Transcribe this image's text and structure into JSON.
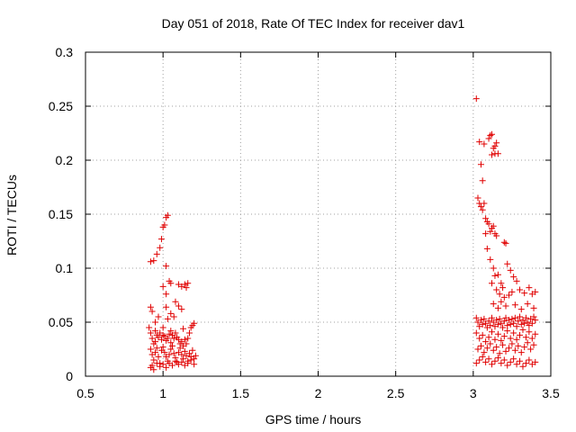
{
  "chart_data": {
    "type": "scatter",
    "title": "Day 051 of 2018, Rate Of TEC Index for receiver dav1",
    "xlabel": "GPS time / hours",
    "ylabel": "ROTI / TECUs",
    "xlim": [
      0.5,
      3.5
    ],
    "ylim": [
      0,
      0.3
    ],
    "xticks": [
      0.5,
      1,
      1.5,
      2,
      2.5,
      3,
      3.5
    ],
    "xtick_labels": [
      "0.5",
      "1",
      "1.5",
      "2",
      "2.5",
      "3",
      "3.5"
    ],
    "yticks": [
      0,
      0.05,
      0.1,
      0.15,
      0.2,
      0.25,
      0.3
    ],
    "ytick_labels": [
      "0",
      "0.05",
      "0.1",
      "0.15",
      "0.2",
      "0.25",
      "0.3"
    ],
    "grid": true,
    "marker": "+",
    "color": "#e00000",
    "series": [
      {
        "name": "ROTI",
        "points": [
          [
            0.92,
            0.106
          ],
          [
            0.94,
            0.107
          ],
          [
            0.96,
            0.113
          ],
          [
            0.98,
            0.119
          ],
          [
            0.99,
            0.127
          ],
          [
            1.0,
            0.138
          ],
          [
            1.01,
            0.14
          ],
          [
            1.03,
            0.149
          ],
          [
            1.02,
            0.147
          ],
          [
            1.02,
            0.102
          ],
          [
            1.0,
            0.083
          ],
          [
            1.02,
            0.076
          ],
          [
            1.04,
            0.088
          ],
          [
            1.05,
            0.086
          ],
          [
            1.1,
            0.085
          ],
          [
            1.12,
            0.083
          ],
          [
            1.14,
            0.085
          ],
          [
            1.15,
            0.082
          ],
          [
            1.16,
            0.086
          ],
          [
            1.08,
            0.069
          ],
          [
            0.92,
            0.064
          ],
          [
            0.93,
            0.06
          ],
          [
            0.95,
            0.05
          ],
          [
            0.97,
            0.055
          ],
          [
            1.02,
            0.064
          ],
          [
            1.05,
            0.058
          ],
          [
            1.07,
            0.055
          ],
          [
            1.03,
            0.053
          ],
          [
            1.1,
            0.065
          ],
          [
            1.12,
            0.062
          ],
          [
            0.91,
            0.045
          ],
          [
            0.92,
            0.04
          ],
          [
            0.93,
            0.035
          ],
          [
            0.94,
            0.03
          ],
          [
            0.95,
            0.042
          ],
          [
            0.96,
            0.038
          ],
          [
            0.97,
            0.036
          ],
          [
            0.98,
            0.04
          ],
          [
            0.99,
            0.034
          ],
          [
            1.0,
            0.038
          ],
          [
            1.01,
            0.037
          ],
          [
            1.02,
            0.033
          ],
          [
            1.03,
            0.035
          ],
          [
            1.04,
            0.039
          ],
          [
            1.05,
            0.042
          ],
          [
            1.06,
            0.038
          ],
          [
            1.07,
            0.035
          ],
          [
            1.08,
            0.04
          ],
          [
            1.09,
            0.036
          ],
          [
            1.1,
            0.034
          ],
          [
            1.11,
            0.03
          ],
          [
            1.12,
            0.032
          ],
          [
            1.13,
            0.028
          ],
          [
            1.14,
            0.034
          ],
          [
            1.15,
            0.03
          ],
          [
            1.16,
            0.035
          ],
          [
            1.17,
            0.04
          ],
          [
            1.18,
            0.045
          ],
          [
            1.19,
            0.047
          ],
          [
            1.2,
            0.049
          ],
          [
            0.92,
            0.025
          ],
          [
            0.93,
            0.02
          ],
          [
            0.94,
            0.015
          ],
          [
            0.95,
            0.022
          ],
          [
            0.96,
            0.026
          ],
          [
            0.97,
            0.018
          ],
          [
            0.98,
            0.012
          ],
          [
            0.99,
            0.024
          ],
          [
            1.0,
            0.027
          ],
          [
            1.01,
            0.022
          ],
          [
            1.02,
            0.018
          ],
          [
            1.03,
            0.014
          ],
          [
            1.04,
            0.02
          ],
          [
            1.05,
            0.025
          ],
          [
            1.06,
            0.028
          ],
          [
            1.07,
            0.021
          ],
          [
            1.08,
            0.017
          ],
          [
            1.09,
            0.013
          ],
          [
            1.1,
            0.022
          ],
          [
            1.11,
            0.026
          ],
          [
            1.12,
            0.02
          ],
          [
            1.13,
            0.016
          ],
          [
            1.14,
            0.023
          ],
          [
            1.15,
            0.019
          ],
          [
            1.16,
            0.014
          ],
          [
            1.17,
            0.021
          ],
          [
            1.18,
            0.018
          ],
          [
            1.19,
            0.024
          ],
          [
            1.2,
            0.016
          ],
          [
            1.21,
            0.019
          ],
          [
            0.92,
            0.008
          ],
          [
            0.93,
            0.01
          ],
          [
            0.94,
            0.006
          ],
          [
            0.96,
            0.012
          ],
          [
            0.98,
            0.009
          ],
          [
            1.0,
            0.011
          ],
          [
            1.02,
            0.008
          ],
          [
            1.04,
            0.012
          ],
          [
            1.06,
            0.01
          ],
          [
            1.08,
            0.014
          ],
          [
            1.1,
            0.011
          ],
          [
            1.12,
            0.013
          ],
          [
            1.14,
            0.01
          ],
          [
            1.16,
            0.012
          ],
          [
            1.18,
            0.015
          ],
          [
            1.2,
            0.011
          ],
          [
            0.95,
            0.032
          ],
          [
            1.0,
            0.045
          ],
          [
            1.05,
            0.031
          ],
          [
            1.13,
            0.044
          ],
          [
            3.02,
            0.257
          ],
          [
            3.04,
            0.217
          ],
          [
            3.07,
            0.215
          ],
          [
            3.1,
            0.22
          ],
          [
            3.11,
            0.223
          ],
          [
            3.12,
            0.224
          ],
          [
            3.13,
            0.211
          ],
          [
            3.14,
            0.213
          ],
          [
            3.15,
            0.216
          ],
          [
            3.12,
            0.205
          ],
          [
            3.14,
            0.206
          ],
          [
            3.16,
            0.206
          ],
          [
            3.05,
            0.196
          ],
          [
            3.06,
            0.181
          ],
          [
            3.03,
            0.165
          ],
          [
            3.04,
            0.16
          ],
          [
            3.05,
            0.157
          ],
          [
            3.06,
            0.154
          ],
          [
            3.07,
            0.16
          ],
          [
            3.08,
            0.146
          ],
          [
            3.09,
            0.143
          ],
          [
            3.1,
            0.141
          ],
          [
            3.11,
            0.134
          ],
          [
            3.12,
            0.137
          ],
          [
            3.13,
            0.139
          ],
          [
            3.14,
            0.132
          ],
          [
            3.15,
            0.13
          ],
          [
            3.2,
            0.124
          ],
          [
            3.21,
            0.123
          ],
          [
            3.08,
            0.132
          ],
          [
            3.09,
            0.118
          ],
          [
            3.11,
            0.108
          ],
          [
            3.13,
            0.1
          ],
          [
            3.14,
            0.093
          ],
          [
            3.16,
            0.094
          ],
          [
            3.18,
            0.086
          ],
          [
            3.22,
            0.104
          ],
          [
            3.24,
            0.098
          ],
          [
            3.26,
            0.092
          ],
          [
            3.28,
            0.088
          ],
          [
            3.12,
            0.086
          ],
          [
            3.15,
            0.08
          ],
          [
            3.17,
            0.076
          ],
          [
            3.19,
            0.082
          ],
          [
            3.2,
            0.073
          ],
          [
            3.23,
            0.075
          ],
          [
            3.25,
            0.078
          ],
          [
            3.3,
            0.08
          ],
          [
            3.33,
            0.077
          ],
          [
            3.36,
            0.082
          ],
          [
            3.38,
            0.076
          ],
          [
            3.4,
            0.078
          ],
          [
            3.13,
            0.067
          ],
          [
            3.16,
            0.063
          ],
          [
            3.18,
            0.069
          ],
          [
            3.21,
            0.065
          ],
          [
            3.27,
            0.066
          ],
          [
            3.31,
            0.062
          ],
          [
            3.35,
            0.067
          ],
          [
            3.39,
            0.063
          ],
          [
            3.02,
            0.054
          ],
          [
            3.03,
            0.05
          ],
          [
            3.04,
            0.046
          ],
          [
            3.05,
            0.052
          ],
          [
            3.06,
            0.048
          ],
          [
            3.07,
            0.053
          ],
          [
            3.08,
            0.049
          ],
          [
            3.09,
            0.045
          ],
          [
            3.1,
            0.051
          ],
          [
            3.11,
            0.047
          ],
          [
            3.12,
            0.054
          ],
          [
            3.13,
            0.05
          ],
          [
            3.14,
            0.046
          ],
          [
            3.15,
            0.052
          ],
          [
            3.16,
            0.048
          ],
          [
            3.17,
            0.053
          ],
          [
            3.18,
            0.049
          ],
          [
            3.19,
            0.045
          ],
          [
            3.2,
            0.051
          ],
          [
            3.21,
            0.054
          ],
          [
            3.22,
            0.047
          ],
          [
            3.23,
            0.052
          ],
          [
            3.24,
            0.048
          ],
          [
            3.25,
            0.053
          ],
          [
            3.26,
            0.049
          ],
          [
            3.27,
            0.054
          ],
          [
            3.28,
            0.046
          ],
          [
            3.29,
            0.051
          ],
          [
            3.3,
            0.055
          ],
          [
            3.31,
            0.048
          ],
          [
            3.32,
            0.052
          ],
          [
            3.33,
            0.049
          ],
          [
            3.34,
            0.054
          ],
          [
            3.35,
            0.05
          ],
          [
            3.36,
            0.047
          ],
          [
            3.37,
            0.053
          ],
          [
            3.38,
            0.049
          ],
          [
            3.39,
            0.055
          ],
          [
            3.4,
            0.052
          ],
          [
            3.02,
            0.04
          ],
          [
            3.04,
            0.035
          ],
          [
            3.06,
            0.038
          ],
          [
            3.08,
            0.032
          ],
          [
            3.1,
            0.036
          ],
          [
            3.12,
            0.041
          ],
          [
            3.14,
            0.034
          ],
          [
            3.16,
            0.039
          ],
          [
            3.18,
            0.033
          ],
          [
            3.2,
            0.037
          ],
          [
            3.22,
            0.042
          ],
          [
            3.24,
            0.035
          ],
          [
            3.26,
            0.04
          ],
          [
            3.28,
            0.034
          ],
          [
            3.3,
            0.038
          ],
          [
            3.32,
            0.043
          ],
          [
            3.34,
            0.036
          ],
          [
            3.36,
            0.041
          ],
          [
            3.38,
            0.035
          ],
          [
            3.4,
            0.039
          ],
          [
            3.03,
            0.025
          ],
          [
            3.05,
            0.028
          ],
          [
            3.07,
            0.022
          ],
          [
            3.09,
            0.026
          ],
          [
            3.11,
            0.03
          ],
          [
            3.13,
            0.024
          ],
          [
            3.15,
            0.027
          ],
          [
            3.17,
            0.021
          ],
          [
            3.19,
            0.029
          ],
          [
            3.21,
            0.023
          ],
          [
            3.23,
            0.026
          ],
          [
            3.25,
            0.03
          ],
          [
            3.27,
            0.024
          ],
          [
            3.29,
            0.028
          ],
          [
            3.31,
            0.022
          ],
          [
            3.33,
            0.027
          ],
          [
            3.35,
            0.031
          ],
          [
            3.37,
            0.025
          ],
          [
            3.39,
            0.029
          ],
          [
            3.02,
            0.012
          ],
          [
            3.04,
            0.015
          ],
          [
            3.06,
            0.018
          ],
          [
            3.08,
            0.013
          ],
          [
            3.1,
            0.016
          ],
          [
            3.12,
            0.011
          ],
          [
            3.14,
            0.014
          ],
          [
            3.16,
            0.017
          ],
          [
            3.18,
            0.012
          ],
          [
            3.2,
            0.015
          ],
          [
            3.22,
            0.01
          ],
          [
            3.24,
            0.013
          ],
          [
            3.26,
            0.016
          ],
          [
            3.28,
            0.011
          ],
          [
            3.3,
            0.014
          ],
          [
            3.32,
            0.009
          ],
          [
            3.34,
            0.012
          ],
          [
            3.36,
            0.015
          ],
          [
            3.38,
            0.011
          ],
          [
            3.4,
            0.013
          ]
        ]
      }
    ]
  }
}
